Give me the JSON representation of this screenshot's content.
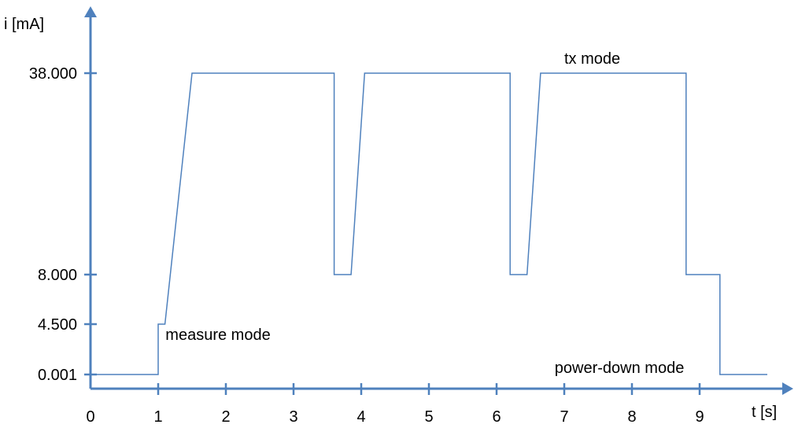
{
  "chart_data": {
    "type": "line",
    "xlabel": "t [s]",
    "ylabel": "i [mA]",
    "xlim": [
      0,
      10
    ],
    "x_ticks": [
      "0",
      "1",
      "2",
      "3",
      "4",
      "5",
      "6",
      "7",
      "8",
      "9"
    ],
    "y_ticks": [
      {
        "label": "0.001",
        "value": 0.001
      },
      {
        "label": "4.500",
        "value": 4.5
      },
      {
        "label": "8.000",
        "value": 8.0
      },
      {
        "label": "38.000",
        "value": 38.0
      }
    ],
    "grid": false,
    "legend": "none",
    "series": [
      {
        "x": [
          0,
          1.0,
          1.0,
          1.1,
          1.5,
          3.6,
          3.6,
          3.85,
          4.05,
          6.2,
          6.2,
          6.45,
          6.65,
          8.8,
          8.8,
          9.3,
          9.3,
          10.0
        ],
        "y": [
          0.001,
          0.001,
          4.5,
          4.5,
          38.0,
          38.0,
          8.0,
          8.0,
          38.0,
          38.0,
          8.0,
          8.0,
          38.0,
          38.0,
          8.0,
          8.0,
          0.001,
          0.001
        ]
      }
    ],
    "annotations": [
      {
        "text": "measure mode",
        "x": 1.05,
        "y": 4.5
      },
      {
        "text": "tx mode",
        "x": 7.0,
        "y": 38.0
      },
      {
        "text": "power-down mode",
        "x": 9.3,
        "y": 0.001
      }
    ],
    "colors": {
      "axis": "#4f81bd",
      "line": "#4f81bd"
    }
  }
}
